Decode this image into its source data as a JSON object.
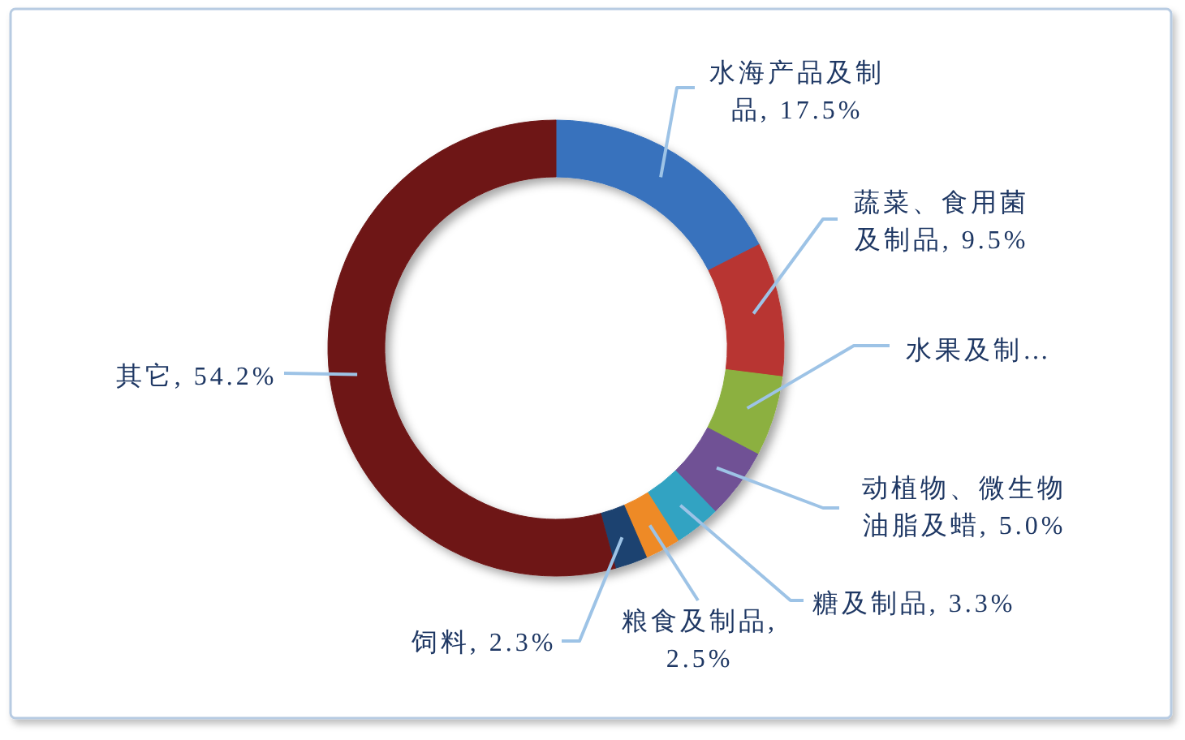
{
  "chart_data": {
    "type": "donut",
    "categories": [
      "水海产品及制品",
      "蔬菜、食用菌及制品",
      "水果及制…",
      "动植物、微生物油脂及蜡",
      "糖及制品",
      "粮食及制品",
      "饲料",
      "其它"
    ],
    "values": [
      17.5,
      9.5,
      5.7,
      5.0,
      3.3,
      2.5,
      2.3,
      54.2
    ],
    "value_labels": [
      ", 17.5%",
      ", 9.5%",
      null,
      ", 5.0%",
      ", 3.3%",
      ", 2.5%",
      ", 2.3%",
      ", 54.2%"
    ],
    "colors": [
      "#3872bd",
      "#b83530",
      "#8cb03f",
      "#6f5195",
      "#31a3c2",
      "#ee8a28",
      "#1c4270",
      "#6e1919"
    ]
  }
}
